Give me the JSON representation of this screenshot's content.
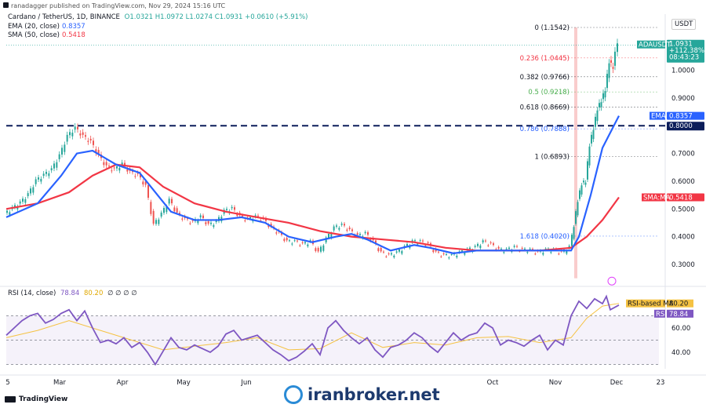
{
  "header": {
    "publisher": "ranadagger published on TradingView.com, Nov 29, 2024 15:16 UTC"
  },
  "legend": {
    "symbol": "Cardano / TetherUS, 1D, BINANCE",
    "ohlc": "O1.0321 H1.0972 L1.0274 C1.0931 +0.0610 (+5.91%)",
    "ema_label": "EMA (20, close)",
    "ema_value": "0.8357",
    "sma_label": "SMA (50, close)",
    "sma_value": "0.5418",
    "rsi_label": "RSI (14, close)",
    "rsi_value": "78.84",
    "rsi_ma_value": "80.20",
    "rsi_extra": "∅ ∅ ∅ ∅"
  },
  "price_axis": {
    "currency": "USDT",
    "ticks": [
      "1.0000",
      "0.9000",
      "0.8000",
      "0.7000",
      "0.6000",
      "0.5000",
      "0.4000",
      "0.3000"
    ],
    "tag_symbol": "ADAUSDT",
    "tag_price": "1.0931",
    "tag_change": "+112.38%",
    "tag_time": "08:43:23",
    "tag_ema_name": "EMA",
    "tag_ema": "0.8357",
    "tag_level": "0.8000",
    "tag_sma_name": "SMA:MA",
    "tag_sma": "0.5418"
  },
  "rsi_axis": {
    "ticks": [
      "60.00",
      "40.00"
    ],
    "tag_ma_name": "RSI-based MA",
    "tag_ma": "80.20",
    "tag_rsi_name": "RSI",
    "tag_rsi": "78.84"
  },
  "time_axis": [
    "5",
    "Mar",
    "Apr",
    "May",
    "Jun",
    "",
    "Oct",
    "Nov",
    "Dec",
    "23"
  ],
  "fib_levels": [
    {
      "label": "0 (1.1542)",
      "price": 1.1542,
      "color": "#131722"
    },
    {
      "label": "0.236 (1.0445)",
      "price": 1.0445,
      "color": "#f23645"
    },
    {
      "label": "0.382 (0.9766)",
      "price": 0.9766,
      "color": "#131722"
    },
    {
      "label": "0.5 (0.9218)",
      "price": 0.9218,
      "color": "#4caf50"
    },
    {
      "label": "0.618 (0.8669)",
      "price": 0.8669,
      "color": "#131722"
    },
    {
      "label": "0.786 (0.7888)",
      "price": 0.7888,
      "color": "#2962ff"
    },
    {
      "label": "1 (0.6893)",
      "price": 0.6893,
      "color": "#131722"
    },
    {
      "label": "1.618 (0.4020)",
      "price": 0.402,
      "color": "#2962ff"
    }
  ],
  "colors": {
    "up": "#26a69a",
    "down": "#ef5350",
    "ema": "#2962ff",
    "sma": "#f23645",
    "rsi": "#7e57c2",
    "rsi_ma": "#f5c242",
    "support": "#0c1d5a"
  },
  "footer": {
    "brand": "TradingView"
  },
  "watermark": {
    "text": "iranbroker.net"
  },
  "chart_data": {
    "type": "candlestick",
    "symbol": "ADAUSDT",
    "interval": "1D",
    "ylim": [
      0.23,
      1.2
    ],
    "support_level": 0.8,
    "close_points": [
      [
        0,
        0.48
      ],
      [
        10,
        0.5
      ],
      [
        20,
        0.52
      ],
      [
        30,
        0.55
      ],
      [
        40,
        0.6
      ],
      [
        50,
        0.62
      ],
      [
        60,
        0.64
      ],
      [
        70,
        0.69
      ],
      [
        80,
        0.76
      ],
      [
        90,
        0.79
      ],
      [
        100,
        0.76
      ],
      [
        110,
        0.74
      ],
      [
        120,
        0.69
      ],
      [
        130,
        0.65
      ],
      [
        140,
        0.64
      ],
      [
        150,
        0.66
      ],
      [
        160,
        0.63
      ],
      [
        170,
        0.62
      ],
      [
        180,
        0.58
      ],
      [
        190,
        0.44
      ],
      [
        200,
        0.48
      ],
      [
        210,
        0.53
      ],
      [
        220,
        0.48
      ],
      [
        230,
        0.46
      ],
      [
        240,
        0.45
      ],
      [
        250,
        0.47
      ],
      [
        260,
        0.44
      ],
      [
        270,
        0.45
      ],
      [
        280,
        0.49
      ],
      [
        290,
        0.5
      ],
      [
        300,
        0.47
      ],
      [
        310,
        0.46
      ],
      [
        320,
        0.47
      ],
      [
        330,
        0.46
      ],
      [
        340,
        0.43
      ],
      [
        350,
        0.41
      ],
      [
        360,
        0.38
      ],
      [
        370,
        0.38
      ],
      [
        380,
        0.37
      ],
      [
        390,
        0.38
      ],
      [
        400,
        0.34
      ],
      [
        410,
        0.39
      ],
      [
        420,
        0.43
      ],
      [
        430,
        0.44
      ],
      [
        440,
        0.42
      ],
      [
        450,
        0.4
      ],
      [
        460,
        0.41
      ],
      [
        470,
        0.38
      ],
      [
        480,
        0.34
      ],
      [
        490,
        0.33
      ],
      [
        500,
        0.34
      ],
      [
        510,
        0.36
      ],
      [
        520,
        0.38
      ],
      [
        530,
        0.38
      ],
      [
        540,
        0.37
      ],
      [
        550,
        0.34
      ],
      [
        560,
        0.33
      ],
      [
        570,
        0.33
      ],
      [
        580,
        0.34
      ],
      [
        590,
        0.35
      ],
      [
        600,
        0.36
      ],
      [
        610,
        0.38
      ],
      [
        620,
        0.37
      ],
      [
        630,
        0.35
      ],
      [
        640,
        0.35
      ],
      [
        650,
        0.36
      ],
      [
        660,
        0.35
      ],
      [
        670,
        0.35
      ],
      [
        680,
        0.34
      ],
      [
        690,
        0.35
      ],
      [
        700,
        0.35
      ],
      [
        710,
        0.34
      ],
      [
        720,
        0.36
      ],
      [
        725,
        0.44
      ],
      [
        730,
        0.53
      ],
      [
        735,
        0.59
      ],
      [
        740,
        0.6
      ],
      [
        745,
        0.73
      ],
      [
        750,
        0.79
      ],
      [
        755,
        0.86
      ],
      [
        760,
        0.89
      ],
      [
        765,
        0.93
      ],
      [
        770,
        1.03
      ],
      [
        775,
        1.01
      ],
      [
        778,
        1.06
      ],
      [
        781,
        1.09
      ]
    ],
    "ema_20": [
      [
        0,
        0.47
      ],
      [
        40,
        0.52
      ],
      [
        70,
        0.62
      ],
      [
        90,
        0.7
      ],
      [
        110,
        0.71
      ],
      [
        140,
        0.66
      ],
      [
        170,
        0.63
      ],
      [
        190,
        0.56
      ],
      [
        210,
        0.49
      ],
      [
        240,
        0.46
      ],
      [
        270,
        0.46
      ],
      [
        300,
        0.47
      ],
      [
        330,
        0.45
      ],
      [
        360,
        0.4
      ],
      [
        390,
        0.38
      ],
      [
        420,
        0.4
      ],
      [
        440,
        0.41
      ],
      [
        460,
        0.39
      ],
      [
        490,
        0.35
      ],
      [
        520,
        0.37
      ],
      [
        540,
        0.36
      ],
      [
        570,
        0.34
      ],
      [
        600,
        0.35
      ],
      [
        630,
        0.35
      ],
      [
        660,
        0.35
      ],
      [
        690,
        0.35
      ],
      [
        720,
        0.35
      ],
      [
        730,
        0.4
      ],
      [
        745,
        0.55
      ],
      [
        760,
        0.72
      ],
      [
        781,
        0.8357
      ]
    ],
    "sma_50": [
      [
        0,
        0.5
      ],
      [
        40,
        0.52
      ],
      [
        80,
        0.56
      ],
      [
        110,
        0.62
      ],
      [
        140,
        0.66
      ],
      [
        170,
        0.65
      ],
      [
        200,
        0.58
      ],
      [
        240,
        0.52
      ],
      [
        280,
        0.49
      ],
      [
        320,
        0.47
      ],
      [
        360,
        0.45
      ],
      [
        400,
        0.42
      ],
      [
        440,
        0.4
      ],
      [
        480,
        0.39
      ],
      [
        520,
        0.38
      ],
      [
        560,
        0.36
      ],
      [
        600,
        0.35
      ],
      [
        640,
        0.35
      ],
      [
        680,
        0.35
      ],
      [
        720,
        0.36
      ],
      [
        740,
        0.4
      ],
      [
        760,
        0.46
      ],
      [
        781,
        0.5418
      ]
    ],
    "rsi_14": [
      [
        0,
        54
      ],
      [
        10,
        60
      ],
      [
        20,
        66
      ],
      [
        30,
        70
      ],
      [
        40,
        72
      ],
      [
        50,
        64
      ],
      [
        60,
        67
      ],
      [
        70,
        72
      ],
      [
        80,
        75
      ],
      [
        90,
        66
      ],
      [
        100,
        74
      ],
      [
        110,
        60
      ],
      [
        120,
        48
      ],
      [
        130,
        50
      ],
      [
        140,
        47
      ],
      [
        150,
        52
      ],
      [
        160,
        44
      ],
      [
        170,
        48
      ],
      [
        180,
        40
      ],
      [
        190,
        30
      ],
      [
        200,
        41
      ],
      [
        210,
        52
      ],
      [
        220,
        44
      ],
      [
        230,
        42
      ],
      [
        240,
        46
      ],
      [
        250,
        43
      ],
      [
        260,
        40
      ],
      [
        270,
        45
      ],
      [
        280,
        55
      ],
      [
        290,
        58
      ],
      [
        300,
        50
      ],
      [
        310,
        52
      ],
      [
        320,
        54
      ],
      [
        330,
        48
      ],
      [
        340,
        42
      ],
      [
        350,
        38
      ],
      [
        360,
        33
      ],
      [
        370,
        36
      ],
      [
        380,
        41
      ],
      [
        390,
        47
      ],
      [
        400,
        38
      ],
      [
        410,
        60
      ],
      [
        420,
        66
      ],
      [
        430,
        58
      ],
      [
        440,
        52
      ],
      [
        450,
        47
      ],
      [
        460,
        52
      ],
      [
        470,
        42
      ],
      [
        480,
        36
      ],
      [
        490,
        44
      ],
      [
        500,
        46
      ],
      [
        510,
        50
      ],
      [
        520,
        56
      ],
      [
        530,
        52
      ],
      [
        540,
        45
      ],
      [
        550,
        40
      ],
      [
        560,
        48
      ],
      [
        570,
        56
      ],
      [
        580,
        50
      ],
      [
        590,
        54
      ],
      [
        600,
        56
      ],
      [
        610,
        64
      ],
      [
        620,
        60
      ],
      [
        630,
        46
      ],
      [
        640,
        50
      ],
      [
        650,
        48
      ],
      [
        660,
        45
      ],
      [
        670,
        50
      ],
      [
        680,
        54
      ],
      [
        690,
        42
      ],
      [
        700,
        50
      ],
      [
        710,
        46
      ],
      [
        720,
        70
      ],
      [
        730,
        82
      ],
      [
        740,
        76
      ],
      [
        750,
        84
      ],
      [
        760,
        80
      ],
      [
        765,
        86
      ],
      [
        770,
        75
      ],
      [
        781,
        78.84
      ]
    ],
    "rsi_ma": [
      [
        0,
        52
      ],
      [
        40,
        58
      ],
      [
        80,
        66
      ],
      [
        120,
        58
      ],
      [
        160,
        50
      ],
      [
        200,
        42
      ],
      [
        240,
        45
      ],
      [
        280,
        48
      ],
      [
        320,
        52
      ],
      [
        360,
        42
      ],
      [
        400,
        43
      ],
      [
        440,
        56
      ],
      [
        480,
        44
      ],
      [
        520,
        48
      ],
      [
        560,
        46
      ],
      [
        600,
        52
      ],
      [
        640,
        53
      ],
      [
        680,
        48
      ],
      [
        720,
        52
      ],
      [
        740,
        68
      ],
      [
        760,
        78
      ],
      [
        781,
        80.2
      ]
    ],
    "rsi_ylim": [
      25,
      90
    ],
    "rsi_band": [
      30,
      70
    ]
  }
}
